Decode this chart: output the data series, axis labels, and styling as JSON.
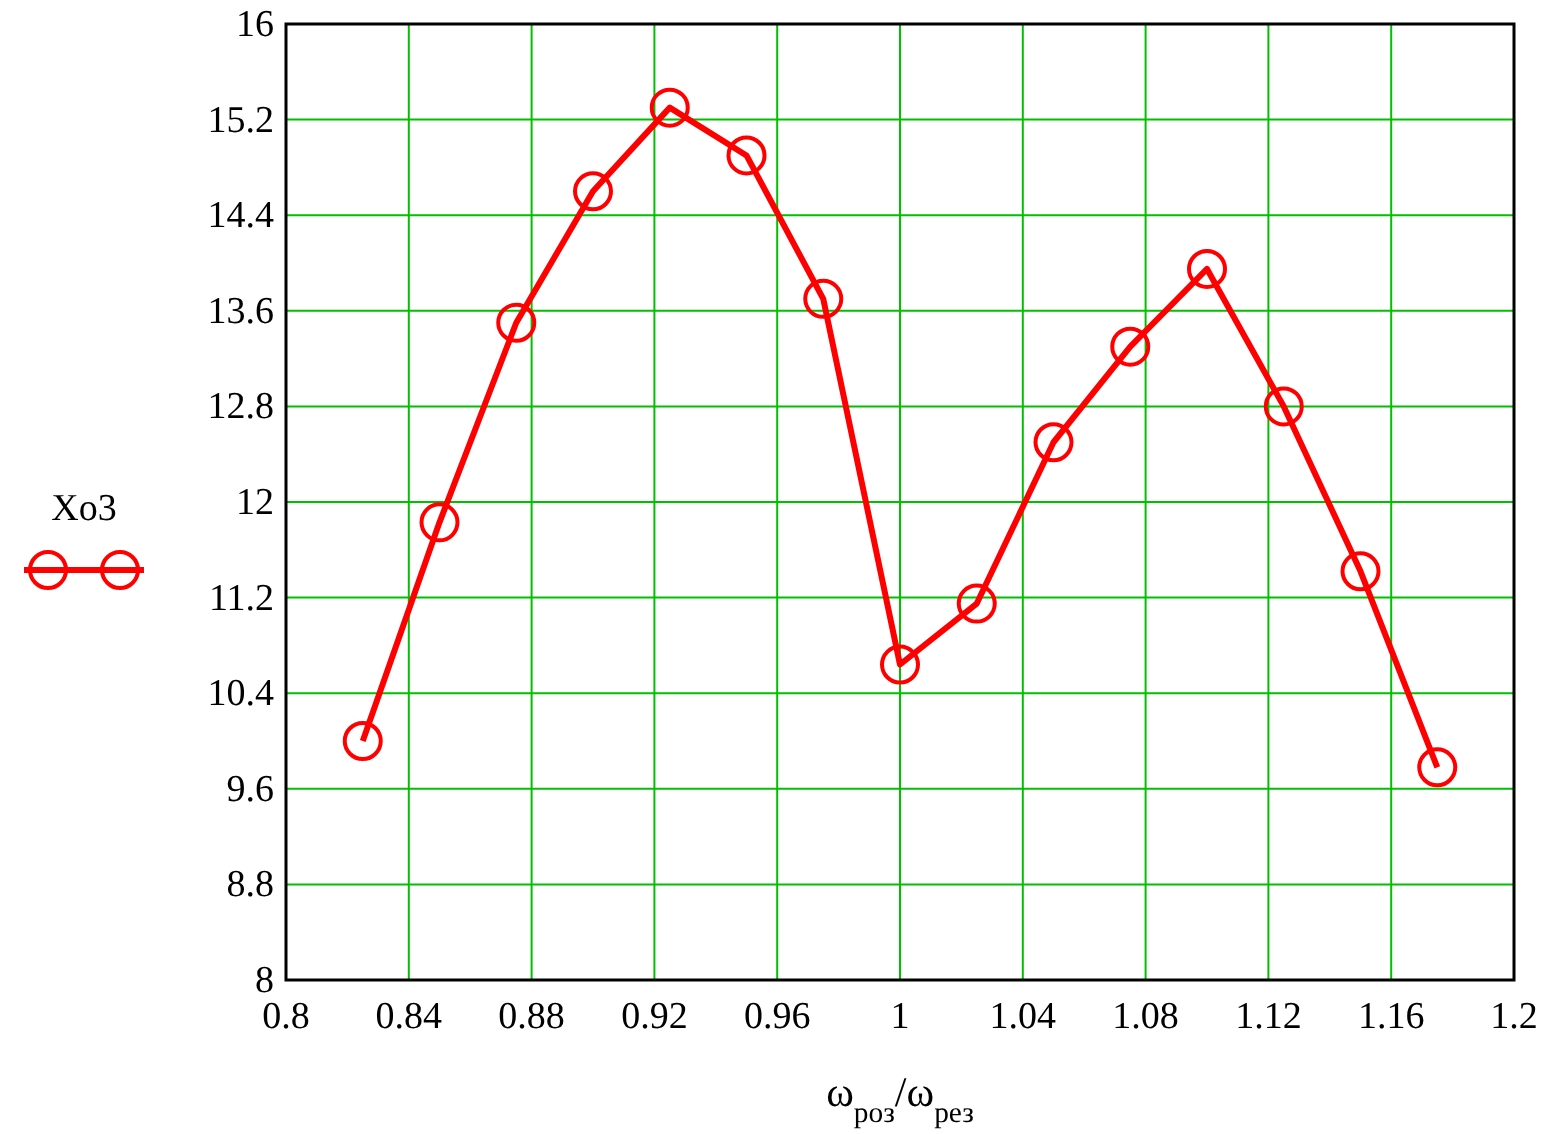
{
  "chart_data": {
    "type": "line",
    "xlabel": "ω$_{роз}$/ω$_{рез}$",
    "x": [
      0.825,
      0.85,
      0.875,
      0.9,
      0.925,
      0.95,
      0.975,
      1,
      1.025,
      1.05,
      1.075,
      1.1,
      1.125,
      1.15,
      1.175
    ],
    "series": [
      {
        "name": "Xo3",
        "color": "#ff0000",
        "values": [
          10.0,
          11.83,
          13.5,
          14.6,
          15.3,
          14.9,
          13.7,
          10.64,
          11.15,
          12.5,
          13.3,
          13.95,
          12.8,
          11.42,
          9.78
        ]
      }
    ],
    "xlim": [
      0.8,
      1.2
    ],
    "xticks": [
      0.8,
      0.84,
      0.88,
      0.92,
      0.96,
      1,
      1.04,
      1.08,
      1.12,
      1.16,
      1.2
    ],
    "ylim": [
      8,
      16
    ],
    "yticks": [
      8,
      8.8,
      9.6,
      10.4,
      11.2,
      12,
      12.8,
      13.6,
      14.4,
      15.2,
      16
    ],
    "grid": true,
    "legend": "left",
    "marker": "circle",
    "line_style": "solid"
  }
}
